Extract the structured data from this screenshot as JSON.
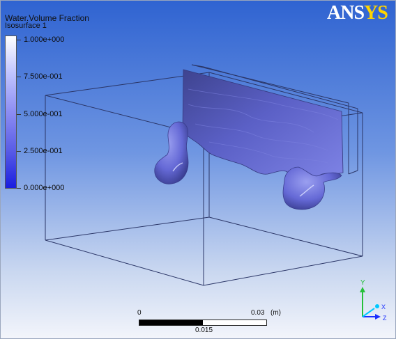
{
  "app": {
    "logo_prefix": "ANS",
    "logo_suffix": "YS",
    "logo_text": "ANSYS"
  },
  "legend": {
    "variable": "Water.Volume Fraction",
    "location": "Isosurface 1",
    "ticks": [
      "1.000e+000",
      "7.500e-001",
      "5.000e-001",
      "2.500e-001",
      "0.000e+000"
    ],
    "colors": {
      "max": "#ffffff",
      "min": "#1a1ee0"
    }
  },
  "scale": {
    "start": "0",
    "end": "0.03",
    "unit": "(m)",
    "mid": "0.015"
  },
  "axis_triad": {
    "x_label": "X",
    "y_label": "Y",
    "z_label": "Z",
    "colors": {
      "x": "#00c8ff",
      "y": "#26c03a",
      "z": "#1a30ff"
    }
  },
  "colors": {
    "background_top": "#2f63d1",
    "background_bottom": "#f3f5fb",
    "isosurface": "#5b5fc8"
  }
}
